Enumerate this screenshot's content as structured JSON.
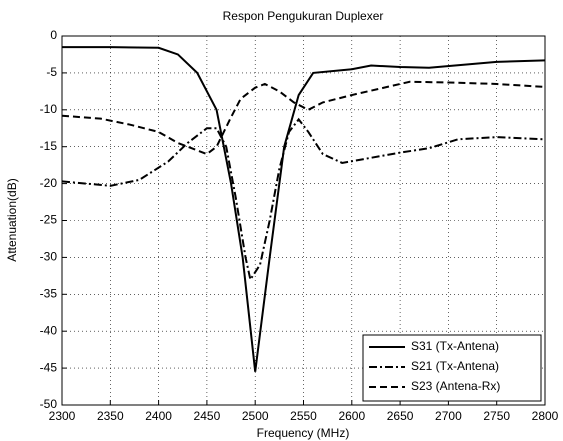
{
  "chart_data": {
    "type": "line",
    "title": "Respon Pengukuran Duplexer",
    "xlabel": "Frequency (MHz)",
    "ylabel": "Attenuation(dB)",
    "xlim": [
      2300,
      2800
    ],
    "ylim": [
      -50,
      0
    ],
    "xticks": [
      2300,
      2350,
      2400,
      2450,
      2500,
      2550,
      2600,
      2650,
      2700,
      2750,
      2800
    ],
    "yticks": [
      -50,
      -45,
      -40,
      -35,
      -30,
      -25,
      -20,
      -15,
      -10,
      -5,
      0
    ],
    "grid": true,
    "legend": "lower right",
    "series": [
      {
        "name": "S31 (Tx-Antena)",
        "color": "#000000",
        "style": "solid",
        "x": [
          2300,
          2350,
          2400,
          2420,
          2440,
          2460,
          2475,
          2487,
          2500,
          2515,
          2530,
          2545,
          2560,
          2600,
          2620,
          2650,
          2680,
          2750,
          2800
        ],
        "values": [
          -1.5,
          -1.5,
          -1.6,
          -2.5,
          -5,
          -10,
          -20,
          -30,
          -45.5,
          -30,
          -15,
          -8,
          -5,
          -4.5,
          -4,
          -4.2,
          -4.3,
          -3.5,
          -3.3
        ]
      },
      {
        "name": "S21 (Tx-Antena)",
        "color": "#000000",
        "style": "dashdot",
        "x": [
          2300,
          2350,
          2380,
          2410,
          2430,
          2450,
          2460,
          2470,
          2480,
          2490,
          2495,
          2505,
          2515,
          2525,
          2535,
          2545,
          2555,
          2570,
          2590,
          2620,
          2650,
          2680,
          2710,
          2750,
          2800
        ],
        "values": [
          -19.7,
          -20.3,
          -19.5,
          -17,
          -14.5,
          -12.5,
          -12.5,
          -15,
          -22,
          -30,
          -33,
          -31,
          -25,
          -18,
          -13,
          -11.3,
          -13,
          -16,
          -17.2,
          -16.5,
          -15.8,
          -15.2,
          -14,
          -13.7,
          -14
        ]
      },
      {
        "name": "S23 (Antena-Rx)",
        "color": "#000000",
        "style": "dashed",
        "x": [
          2300,
          2340,
          2370,
          2400,
          2420,
          2450,
          2460,
          2475,
          2485,
          2500,
          2510,
          2525,
          2540,
          2555,
          2570,
          2600,
          2640,
          2660,
          2700,
          2750,
          2800
        ],
        "values": [
          -10.8,
          -11.2,
          -12,
          -13,
          -14.5,
          -16,
          -15,
          -11,
          -8.5,
          -7,
          -6.5,
          -7.5,
          -9,
          -10,
          -9,
          -8,
          -6.8,
          -6.2,
          -6.3,
          -6.5,
          -6.9
        ]
      }
    ]
  }
}
